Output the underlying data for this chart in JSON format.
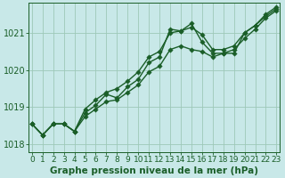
{
  "xlabel": "Graphe pression niveau de la mer (hPa)",
  "bg_color": "#c8e8e8",
  "grid_color": "#9dc8b8",
  "line_color": "#1a5e28",
  "x_values": [
    0,
    1,
    2,
    3,
    4,
    5,
    6,
    7,
    8,
    9,
    10,
    11,
    12,
    13,
    14,
    15,
    16,
    17,
    18,
    19,
    20,
    21,
    22,
    23
  ],
  "series1": [
    1018.55,
    1018.25,
    1018.55,
    1018.55,
    1018.35,
    1018.85,
    1019.05,
    1019.35,
    1019.25,
    1019.55,
    1019.75,
    1020.2,
    1020.35,
    1021.1,
    1021.05,
    1021.25,
    1020.75,
    1020.45,
    1020.45,
    1020.45,
    1021.0,
    1021.2,
    1021.45,
    1021.65
  ],
  "series2": [
    1018.55,
    1018.25,
    1018.55,
    1018.55,
    1018.35,
    1018.75,
    1018.95,
    1019.15,
    1019.2,
    1019.4,
    1019.6,
    1019.95,
    1020.1,
    1020.55,
    1020.65,
    1020.55,
    1020.5,
    1020.35,
    1020.45,
    1020.55,
    1020.85,
    1021.1,
    1021.4,
    1021.6
  ],
  "series3": [
    1018.55,
    1018.25,
    1018.55,
    1018.55,
    1018.35,
    1018.95,
    1019.2,
    1019.4,
    1019.5,
    1019.7,
    1019.95,
    1020.35,
    1020.5,
    1021.0,
    1021.05,
    1021.15,
    1020.95,
    1020.55,
    1020.55,
    1020.65,
    1021.0,
    1021.2,
    1021.5,
    1021.7
  ],
  "ylim": [
    1017.8,
    1021.8
  ],
  "yticks": [
    1018,
    1019,
    1020,
    1021
  ],
  "xticks": [
    0,
    1,
    2,
    3,
    4,
    5,
    6,
    7,
    8,
    9,
    10,
    11,
    12,
    13,
    14,
    15,
    16,
    17,
    18,
    19,
    20,
    21,
    22,
    23
  ],
  "markersize": 2.8,
  "linewidth": 1.0,
  "xlabel_fontsize": 7.5,
  "tick_fontsize": 6.5
}
